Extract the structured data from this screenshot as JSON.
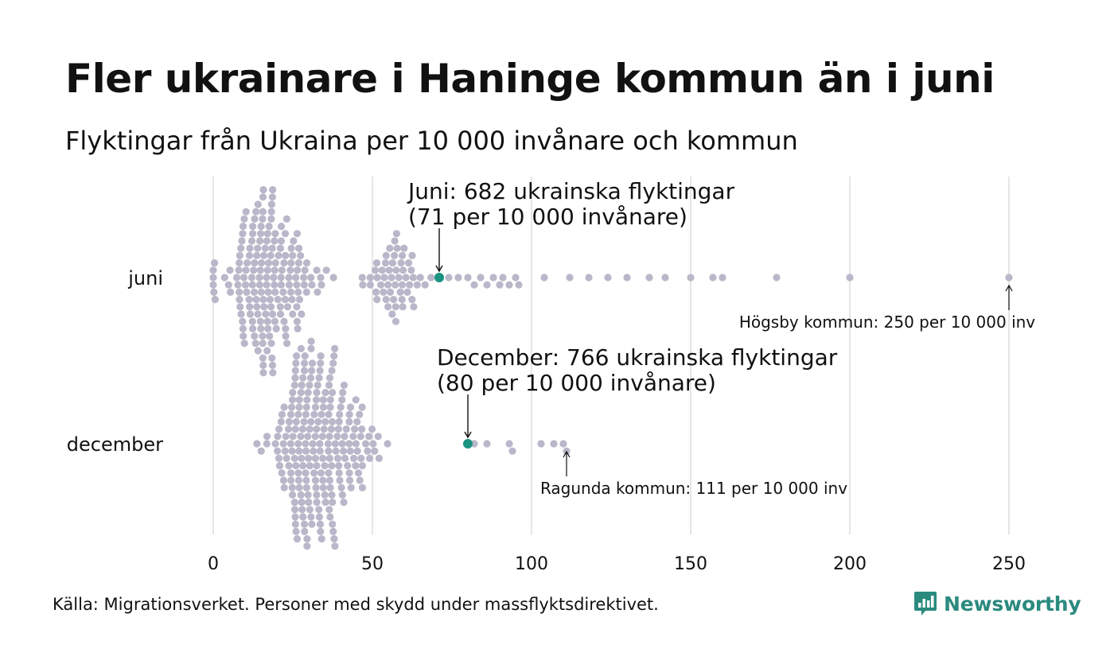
{
  "title": "Fler ukrainare i Haninge kommun än i juni",
  "subtitle": "Flyktingar från Ukraina per 10 000 invånare och kommun",
  "source": "Källa: Migrationsverket. Personer med skydd under massflyktsdirektivet.",
  "brand": "Newsworthy",
  "colors": {
    "dot": "#b9b7c9",
    "highlight": "#1a9381",
    "grid": "#d4d4d4",
    "brand": "#2b8a7e",
    "text": "#111111"
  },
  "chart_data": {
    "type": "scatter",
    "subtype": "beeswarm",
    "xlim": [
      0,
      250
    ],
    "xticks": [
      0,
      50,
      100,
      150,
      200,
      250
    ],
    "categories": [
      "juni",
      "december"
    ],
    "series": [
      {
        "name": "juni",
        "n_municipalities": 290,
        "highlight": {
          "value": 71,
          "label_line1": "Juni: 682 ukrainska flyktingar",
          "label_line2": "(71 per 10 000 invånare)"
        },
        "max_annotation": {
          "value": 250,
          "label": "Högsby kommun: 250 per 10 000 inv"
        },
        "outliers": [
          74,
          77,
          80,
          82,
          84,
          86,
          88,
          90,
          91,
          93,
          95,
          96,
          104,
          112,
          118,
          124,
          130,
          137,
          142,
          150,
          157,
          160,
          177,
          200,
          250
        ]
      },
      {
        "name": "december",
        "n_municipalities": 290,
        "highlight": {
          "value": 80,
          "label_line1": "December: 766 ukrainska flyktingar",
          "label_line2": "(80 per 10 000 invånare)"
        },
        "max_annotation": {
          "value": 111,
          "label": "Ragunda kommun: 111 per 10 000 inv"
        },
        "outliers": [
          82,
          86,
          93,
          94,
          103,
          107,
          110,
          111
        ]
      }
    ]
  }
}
